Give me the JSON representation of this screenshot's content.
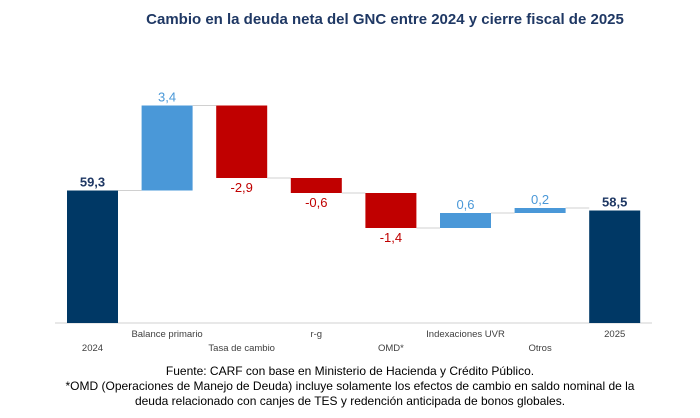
{
  "chart_data": {
    "type": "waterfall",
    "title": "Cambio en la deuda neta del GNC entre 2024 y cierre fiscal de 2025",
    "categories": [
      "2024",
      "Balance primario",
      "Tasa de cambio",
      "r-g",
      "OMD*",
      "Indexaciones UVR",
      "Otros",
      "2025"
    ],
    "values": [
      59.3,
      3.4,
      -2.9,
      -0.6,
      -1.4,
      0.6,
      0.2,
      58.5
    ],
    "kinds": [
      "total",
      "delta",
      "delta",
      "delta",
      "delta",
      "delta",
      "delta",
      "total"
    ],
    "labels": [
      "59,3",
      "3,4",
      "-2,9",
      "-0,6",
      "-1,4",
      "0,6",
      "0,2",
      "58,5"
    ],
    "ylim": [
      54,
      63
    ],
    "grid": false,
    "colors": {
      "total": "#003865",
      "increase": "#4a98d8",
      "decrease": "#c00000"
    }
  },
  "notes": {
    "source": "Fuente: CARF con base en Ministerio de Hacienda y Crédito Público.",
    "footnote_line1": "*OMD (Operaciones de Manejo de Deuda) incluye solamente los efectos de cambio en saldo nominal de la",
    "footnote_line2": "deuda relacionado con canjes de TES y redención anticipada de bonos globales."
  }
}
